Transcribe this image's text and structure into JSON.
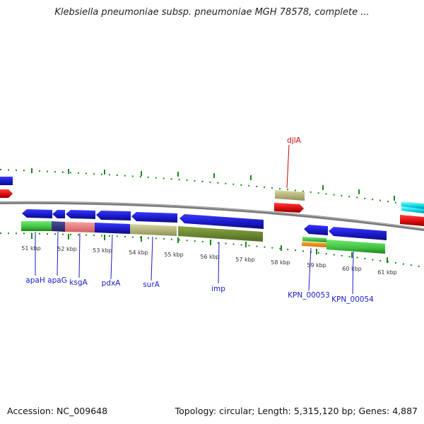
{
  "header": {
    "title": "Klebsiella pneumoniae subsp. pneumoniae MGH 78578, complete ..."
  },
  "footer": {
    "accession": "Accession: NC_009648",
    "stats": "Topology: circular; Length: 5,315,120 bp; Genes: 4,887"
  },
  "scale": {
    "ticks": [
      "51 kbp",
      "52 kbp",
      "53 kbp",
      "54 kbp",
      "55 kbp",
      "56 kbp",
      "57 kbp",
      "58 kbp",
      "59 kbp",
      "60 kbp",
      "61 kbp"
    ]
  },
  "genes": {
    "forward": [
      "djlA"
    ],
    "reverse": [
      "apaH",
      "apaG",
      "ksgA",
      "pdxA",
      "surA",
      "imp",
      "KPN_00053",
      "KPN_00054"
    ]
  },
  "colors": {
    "gene_label": "#1a1acc",
    "forward_label": "#cc0000",
    "cds_blue": "#1c1ccf",
    "cds_red": "#e01010",
    "cds_cyan": "#10e0f0",
    "tick_green": "#1a8a1a",
    "backbone": "#808080"
  }
}
